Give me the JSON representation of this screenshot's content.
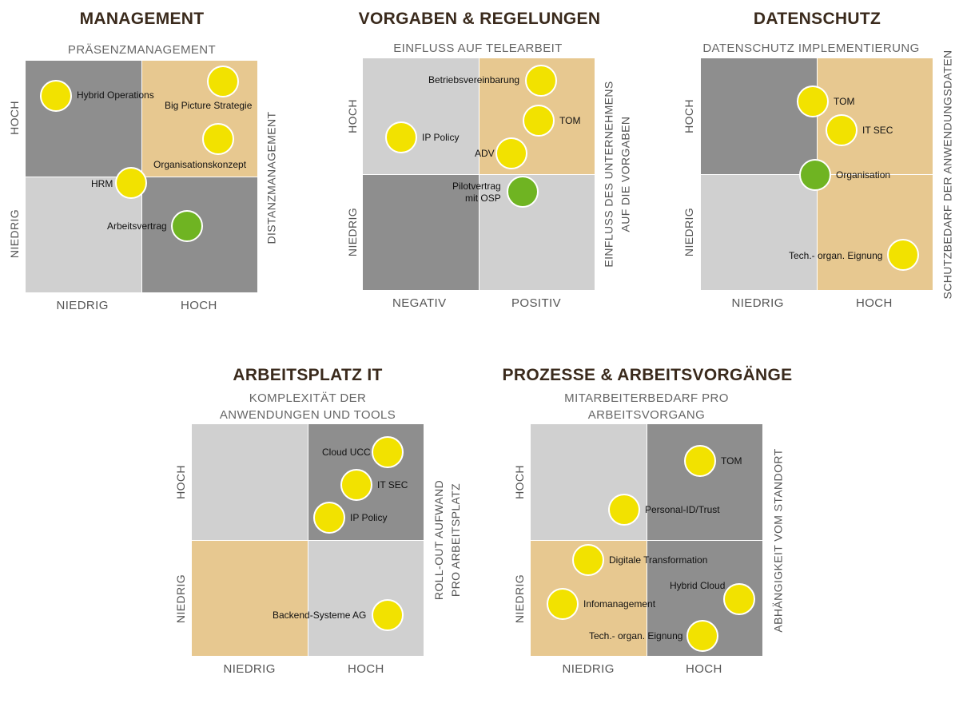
{
  "colors": {
    "dark": "#8e8e8e",
    "light": "#d0d0d0",
    "tan": "#e7c890",
    "yellow": "#f2e200",
    "green": "#6fb422",
    "title": "#3a2a1c"
  },
  "panels": [
    {
      "id": "management",
      "title": "MANAGEMENT",
      "top_label": "PRÄSENZMANAGEMENT",
      "left_high": "HOCH",
      "left_low": "NIEDRIG",
      "right_label": "DISTANZMANAGEMENT",
      "bottom_left": "NIEDRIG",
      "bottom_right": "HOCH",
      "quadrants": {
        "tl": "dark",
        "tr": "tan",
        "bl": "light",
        "br": "dark"
      },
      "items": [
        {
          "label": "Hybrid Operations",
          "color": "yellow"
        },
        {
          "label": "Big Picture Strategie",
          "color": "yellow"
        },
        {
          "label": "Organisationskonzept",
          "color": "yellow"
        },
        {
          "label": "HRM",
          "color": "yellow"
        },
        {
          "label": "Arbeitsvertrag",
          "color": "green"
        }
      ]
    },
    {
      "id": "vorgaben",
      "title": "VORGABEN & REGELUNGEN",
      "top_label": "EINFLUSS AUF TELEARBEIT",
      "left_high": "HOCH",
      "left_low": "NIEDRIG",
      "right_label": "EINFLUSS DES UNTERNEHMENS\nAUF DIE VORGABEN",
      "bottom_left": "NEGATIV",
      "bottom_right": "POSITIV",
      "quadrants": {
        "tl": "light",
        "tr": "tan",
        "bl": "dark",
        "br": "light"
      },
      "items": [
        {
          "label": "Betriebsvereinbarung",
          "color": "yellow"
        },
        {
          "label": "TOM",
          "color": "yellow"
        },
        {
          "label": "IP Policy",
          "color": "yellow"
        },
        {
          "label": "ADV",
          "color": "yellow"
        },
        {
          "label": "Pilotvertrag\nmit OSP",
          "color": "green"
        }
      ]
    },
    {
      "id": "datenschutz",
      "title": "DATENSCHUTZ",
      "top_label": "DATENSCHUTZ IMPLEMENTIERUNG",
      "left_high": "HOCH",
      "left_low": "NIEDRIG",
      "right_label": "SCHUTZBEDARF DER ANWENDUNGSDATEN",
      "bottom_left": "NIEDRIG",
      "bottom_right": "HOCH",
      "quadrants": {
        "tl": "dark",
        "tr": "tan",
        "bl": "light",
        "br": "tan"
      },
      "items": [
        {
          "label": "TOM",
          "color": "yellow"
        },
        {
          "label": "IT SEC",
          "color": "yellow"
        },
        {
          "label": "Organisation",
          "color": "green"
        },
        {
          "label": "Tech.- organ. Eignung",
          "color": "yellow"
        }
      ]
    },
    {
      "id": "arbeitsplatz",
      "title": "ARBEITSPLATZ IT",
      "top_label": "KOMPLEXITÄT DER\nANWENDUNGEN UND TOOLS",
      "left_high": "HOCH",
      "left_low": "NIEDRIG",
      "right_label": "ROLL-OUT AUFWAND\nPRO ARBEITSPLATZ",
      "bottom_left": "NIEDRIG",
      "bottom_right": "HOCH",
      "quadrants": {
        "tl": "light",
        "tr": "dark",
        "bl": "tan",
        "br": "light"
      },
      "items": [
        {
          "label": "Cloud UCC",
          "color": "yellow"
        },
        {
          "label": "IT SEC",
          "color": "yellow"
        },
        {
          "label": "IP Policy",
          "color": "yellow"
        },
        {
          "label": "Backend-Systeme AG",
          "color": "yellow"
        }
      ]
    },
    {
      "id": "prozesse",
      "title": "PROZESSE & ARBEITSVORGÄNGE",
      "top_label": "MITARBEITERBEDARF PRO\nARBEITSVORGANG",
      "left_high": "HOCH",
      "left_low": "NIEDRIG",
      "right_label": "ABHÄNGIGKEIT VOM STANDORT",
      "bottom_left": "NIEDRIG",
      "bottom_right": "HOCH",
      "quadrants": {
        "tl": "light",
        "tr": "dark",
        "bl": "tan",
        "br": "dark"
      },
      "items": [
        {
          "label": "TOM",
          "color": "yellow"
        },
        {
          "label": "Personal-ID/Trust",
          "color": "yellow"
        },
        {
          "label": "Digitale Transformation",
          "color": "yellow"
        },
        {
          "label": "Hybrid Cloud",
          "color": "yellow"
        },
        {
          "label": "Infomanagement",
          "color": "yellow"
        },
        {
          "label": "Tech.- organ. Eignung",
          "color": "yellow"
        }
      ]
    }
  ]
}
